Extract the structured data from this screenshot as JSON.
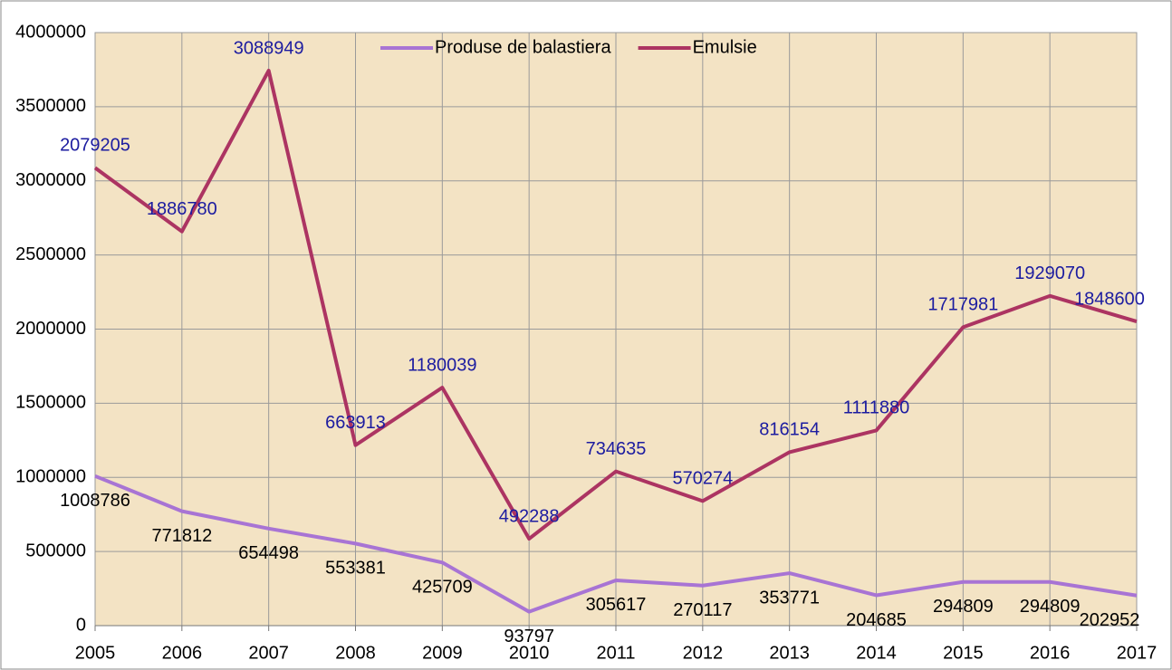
{
  "chart_data": {
    "type": "line",
    "stacked": true,
    "x": [
      2005,
      2006,
      2007,
      2008,
      2009,
      2010,
      2011,
      2012,
      2013,
      2014,
      2015,
      2016,
      2017
    ],
    "series": [
      {
        "name": "Produse de balastiera",
        "color": "#a874d4",
        "label_color": "#000000",
        "values": [
          1008786,
          771812,
          654498,
          553381,
          425709,
          93797,
          305617,
          270117,
          353771,
          204685,
          294809,
          294809,
          202952
        ]
      },
      {
        "name": "Emulsie",
        "color": "#ac3462",
        "label_color": "#1c1ca0",
        "values": [
          2079205,
          1886780,
          3088949,
          663913,
          1180039,
          492288,
          734635,
          570274,
          816154,
          1111880,
          1717981,
          1929070,
          1848600
        ]
      }
    ],
    "ylim": [
      0,
      4000000
    ],
    "yticks": [
      0,
      500000,
      1000000,
      1500000,
      2000000,
      2500000,
      3000000,
      3500000,
      4000000
    ],
    "grid": true,
    "legend": "top"
  }
}
